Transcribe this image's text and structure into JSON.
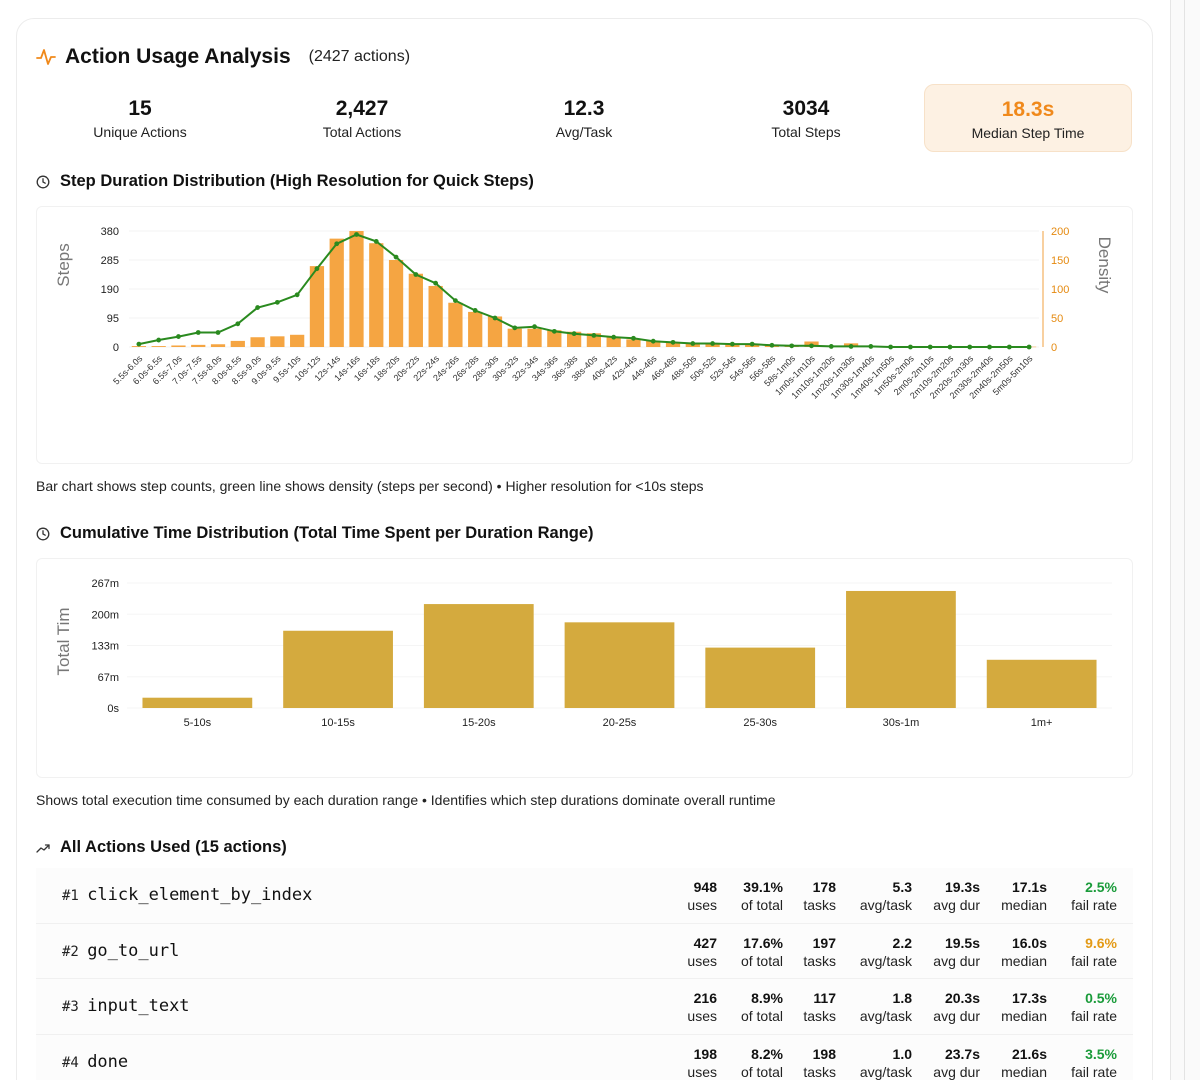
{
  "header": {
    "title": "Action Usage Analysis",
    "count": "(2427 actions)"
  },
  "stats": [
    {
      "value": "15",
      "label": "Unique Actions"
    },
    {
      "value": "2,427",
      "label": "Total Actions"
    },
    {
      "value": "12.3",
      "label": "Avg/Task"
    },
    {
      "value": "3034",
      "label": "Total Steps"
    },
    {
      "value": "18.3s",
      "label": "Median Step Time"
    }
  ],
  "colors": {
    "accent": "#f0891b",
    "bar_orange": "#f5a542",
    "line_green": "#2a8a1f",
    "bar_gold": "#d4aa3e",
    "fail_green": "#1a9b3a",
    "fail_orange": "#e39a17"
  },
  "section1": {
    "title": "Step Duration Distribution (High Resolution for Quick Steps)",
    "caption": "Bar chart shows step counts, green line shows density (steps per second) • Higher resolution for <10s steps"
  },
  "section2": {
    "title": "Cumulative Time Distribution (Total Time Spent per Duration Range)",
    "caption": "Shows total execution time consumed by each duration range • Identifies which step durations dominate overall runtime"
  },
  "section3": {
    "title": "All Actions Used (15 actions)"
  },
  "chart_data": [
    {
      "type": "bar",
      "ylabel": "Steps",
      "y2label": "Density",
      "ylim": [
        0,
        380
      ],
      "y_ticks": [
        "0",
        "95",
        "190",
        "285",
        "380"
      ],
      "y2lim": [
        0,
        200
      ],
      "y2_ticks": [
        "0",
        "50",
        "100",
        "150",
        "200"
      ],
      "categories": [
        "5.5s-6.0s",
        "6.0s-6.5s",
        "6.5s-7.0s",
        "7.0s-7.5s",
        "7.5s-8.0s",
        "8.0s-8.5s",
        "8.5s-9.0s",
        "9.0s-9.5s",
        "9.5s-10s",
        "10s-12s",
        "12s-14s",
        "14s-16s",
        "16s-18s",
        "18s-20s",
        "20s-22s",
        "22s-24s",
        "24s-26s",
        "26s-28s",
        "28s-30s",
        "30s-32s",
        "32s-34s",
        "34s-36s",
        "36s-38s",
        "38s-40s",
        "40s-42s",
        "42s-44s",
        "44s-46s",
        "46s-48s",
        "48s-50s",
        "50s-52s",
        "52s-54s",
        "54s-56s",
        "56s-58s",
        "58s-1m0s",
        "1m0s-1m10s",
        "1m10s-1m20s",
        "1m20s-1m30s",
        "1m30s-1m40s",
        "1m40s-1m50s",
        "1m50s-2m0s",
        "2m0s-2m10s",
        "2m10s-2m20s",
        "2m20s-2m30s",
        "2m30s-2m40s",
        "2m40s-2m50s",
        "5m0s-5m10s"
      ],
      "series": [
        {
          "name": "Steps",
          "values": [
            3,
            3,
            5,
            7,
            9,
            20,
            32,
            35,
            40,
            265,
            355,
            380,
            340,
            285,
            240,
            200,
            145,
            115,
            100,
            60,
            60,
            55,
            50,
            45,
            32,
            25,
            20,
            15,
            12,
            10,
            8,
            8,
            6,
            4,
            18,
            4,
            12,
            3,
            3,
            2,
            2,
            2,
            2,
            2,
            2,
            1
          ]
        },
        {
          "name": "Density",
          "values": [
            5,
            12,
            18,
            25,
            25,
            40,
            68,
            77,
            90,
            135,
            178,
            194,
            182,
            155,
            125,
            110,
            80,
            63,
            50,
            33,
            35,
            27,
            23,
            20,
            17,
            15,
            10,
            8,
            6,
            6,
            5,
            5,
            3,
            2,
            2,
            1,
            1,
            1,
            0,
            0,
            0,
            0,
            0,
            0,
            0,
            0
          ]
        }
      ]
    },
    {
      "type": "bar",
      "ylabel": "Total Tim",
      "ylim": [
        0,
        267
      ],
      "y_ticks": [
        "0s",
        "67m",
        "133m",
        "200m",
        "267m"
      ],
      "categories": [
        "5-10s",
        "10-15s",
        "15-20s",
        "20-25s",
        "25-30s",
        "30s-1m",
        "1m+"
      ],
      "values": [
        22,
        165,
        222,
        183,
        129,
        250,
        103
      ]
    }
  ],
  "actions": [
    {
      "rank": "#1",
      "name": "click_element_by_index",
      "uses": "948",
      "pct": "39.1%",
      "tasks": "178",
      "avg_task": "5.3",
      "avg_dur": "19.3s",
      "median": "17.1s",
      "fail": "2.5%",
      "fail_color": "#1a9b3a"
    },
    {
      "rank": "#2",
      "name": "go_to_url",
      "uses": "427",
      "pct": "17.6%",
      "tasks": "197",
      "avg_task": "2.2",
      "avg_dur": "19.5s",
      "median": "16.0s",
      "fail": "9.6%",
      "fail_color": "#e39a17"
    },
    {
      "rank": "#3",
      "name": "input_text",
      "uses": "216",
      "pct": "8.9%",
      "tasks": "117",
      "avg_task": "1.8",
      "avg_dur": "20.3s",
      "median": "17.3s",
      "fail": "0.5%",
      "fail_color": "#1a9b3a"
    },
    {
      "rank": "#4",
      "name": "done",
      "uses": "198",
      "pct": "8.2%",
      "tasks": "198",
      "avg_task": "1.0",
      "avg_dur": "23.7s",
      "median": "21.6s",
      "fail": "3.5%",
      "fail_color": "#1a9b3a"
    }
  ],
  "action_labels": {
    "uses": "uses",
    "pct": "of total",
    "tasks": "tasks",
    "avg_task": "avg/task",
    "avg_dur": "avg dur",
    "median": "median",
    "fail": "fail rate"
  }
}
